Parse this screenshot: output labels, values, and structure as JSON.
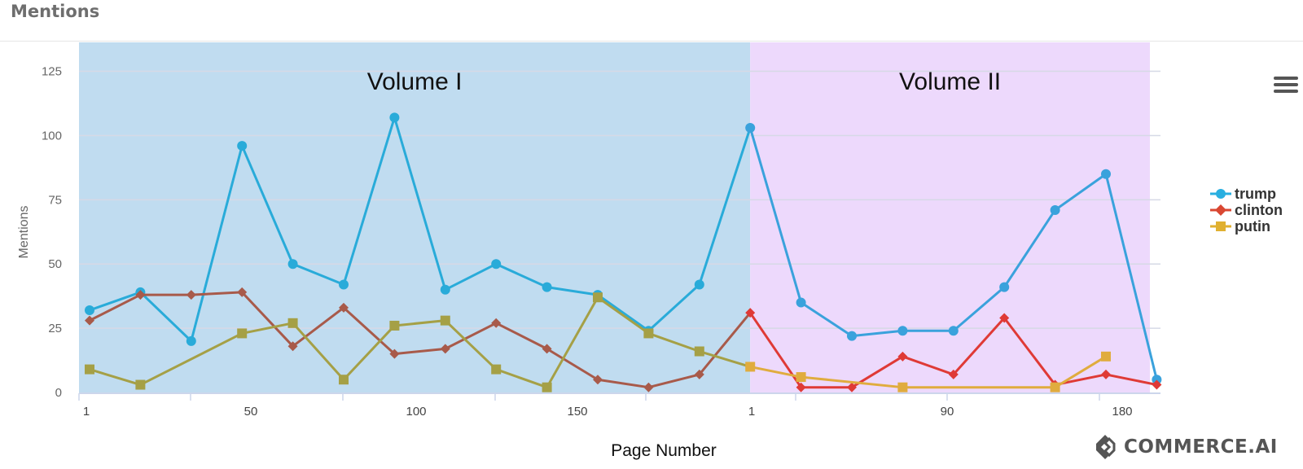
{
  "header": {
    "title": "Mentions"
  },
  "brand": {
    "text": "COMMERCE.AI",
    "icon": "commerce-ai-logo-icon"
  },
  "menu": {
    "icon": "hamburger-menu-icon"
  },
  "colors": {
    "band_volume_1": "#c0dcf0",
    "band_volume_2": "#edd9fc",
    "trump": "#29afe0",
    "clinton": "#d94732",
    "putin": "#e0b030"
  },
  "chart_data": {
    "type": "line",
    "xlabel": "Page Number",
    "ylabel": "Mentions",
    "ylim": [
      0,
      135
    ],
    "yticks": [
      0,
      25,
      50,
      75,
      100,
      125
    ],
    "grid": true,
    "legend_position": "right",
    "x_tick_labels": [
      "1",
      "50",
      "100",
      "150",
      "1",
      "90",
      "180"
    ],
    "bands": [
      {
        "label": "Volume I",
        "from_index": 0,
        "to_index": 13
      },
      {
        "label": "Volume II",
        "from_index": 13,
        "to_index": 21
      }
    ],
    "series": [
      {
        "name": "trump",
        "marker": "circle",
        "values": [
          32,
          39,
          20,
          96,
          50,
          42,
          107,
          40,
          50,
          41,
          38,
          24,
          42,
          103,
          35,
          22,
          24,
          24,
          41,
          71,
          85,
          5
        ]
      },
      {
        "name": "clinton",
        "marker": "diamond",
        "values": [
          28,
          38,
          38,
          39,
          18,
          33,
          15,
          17,
          27,
          17,
          5,
          2,
          7,
          31,
          2,
          2,
          14,
          7,
          29,
          3,
          7,
          3
        ]
      },
      {
        "name": "putin",
        "marker": "square",
        "values": [
          9,
          3,
          null,
          23,
          27,
          5,
          26,
          28,
          9,
          2,
          37,
          23,
          16,
          10,
          6,
          null,
          2,
          null,
          null,
          2,
          14,
          null
        ]
      }
    ]
  }
}
